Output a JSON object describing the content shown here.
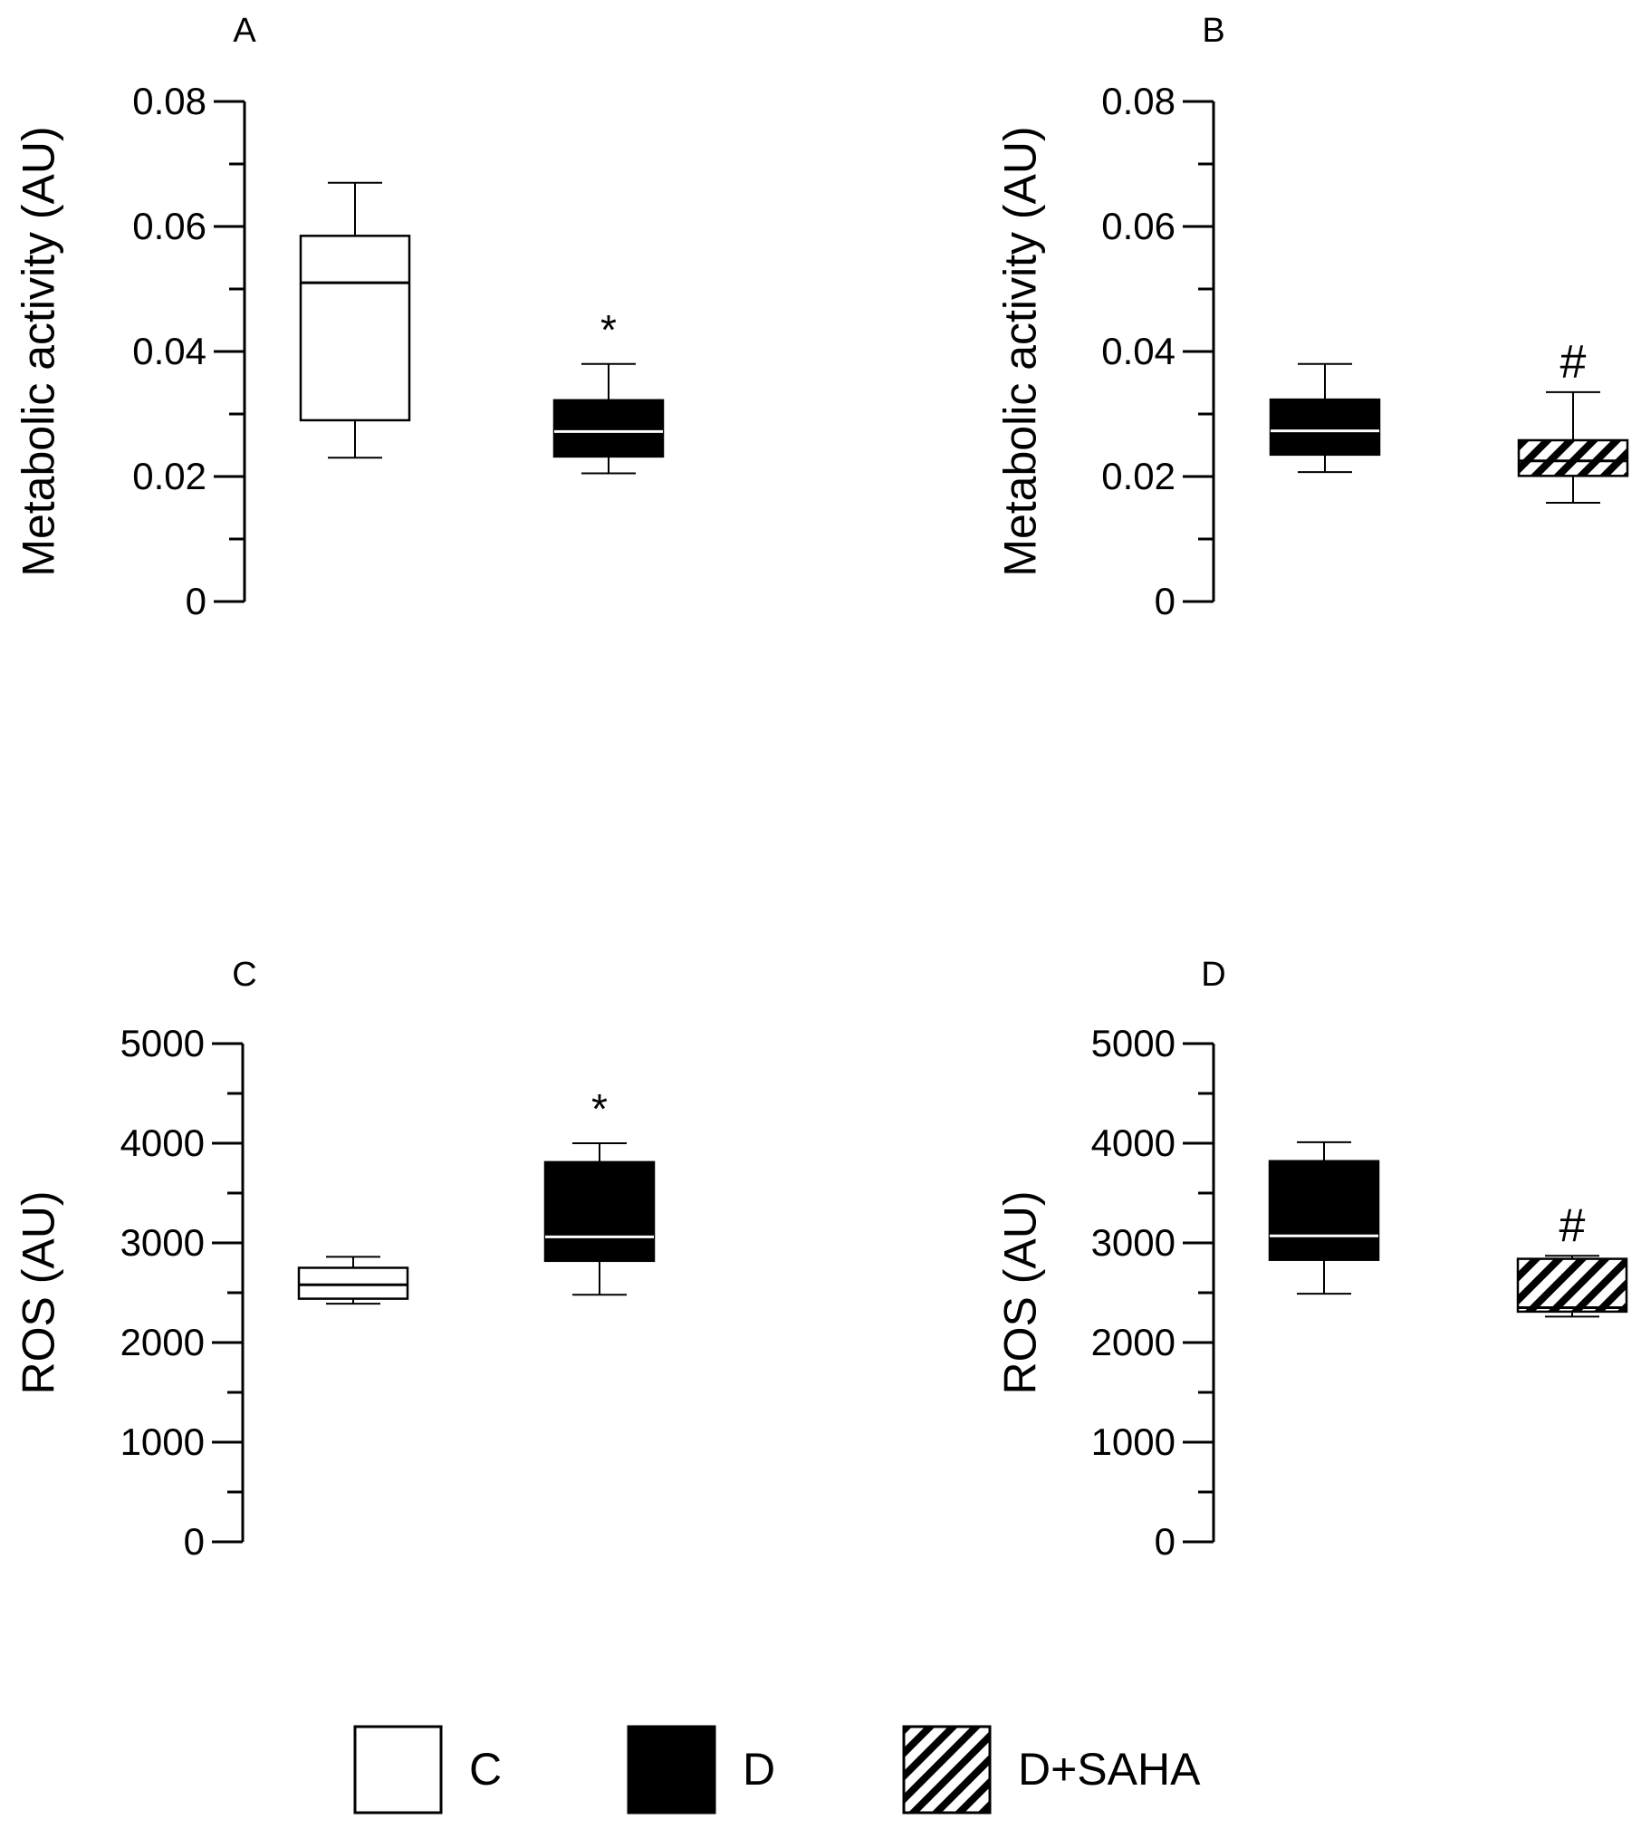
{
  "chart_data": [
    {
      "panel": "A",
      "type": "box",
      "ylabel": "Metabolic  activity (AU)",
      "ylim": [
        0,
        0.08
      ],
      "yticks": [
        "0",
        "0.02",
        "0.04",
        "0.06",
        "0.08"
      ],
      "boxes": [
        {
          "group": "C",
          "min": 0.023,
          "q1": 0.029,
          "median": 0.051,
          "q3": 0.0585,
          "max": 0.067,
          "mark": ""
        },
        {
          "group": "D",
          "min": 0.0205,
          "q1": 0.0232,
          "median": 0.0272,
          "q3": 0.0322,
          "max": 0.038,
          "mark": "*"
        }
      ]
    },
    {
      "panel": "B",
      "type": "box",
      "ylabel": "Metabolic  activity (AU)",
      "ylim": [
        0,
        0.08
      ],
      "yticks": [
        "0",
        "0.02",
        "0.04",
        "0.06",
        "0.08"
      ],
      "boxes": [
        {
          "group": "D",
          "min": 0.0207,
          "q1": 0.0235,
          "median": 0.0273,
          "q3": 0.0323,
          "max": 0.038,
          "mark": ""
        },
        {
          "group": "D+SAHA",
          "min": 0.0158,
          "q1": 0.0201,
          "median": 0.0225,
          "q3": 0.0258,
          "max": 0.0335,
          "mark": "#"
        }
      ]
    },
    {
      "panel": "C",
      "type": "box",
      "ylabel": "ROS (AU)",
      "ylim": [
        0,
        5000
      ],
      "yticks": [
        "0",
        "1000",
        "2000",
        "3000",
        "4000",
        "5000"
      ],
      "boxes": [
        {
          "group": "C",
          "min": 2390,
          "q1": 2440,
          "median": 2580,
          "q3": 2750,
          "max": 2860,
          "mark": ""
        },
        {
          "group": "D",
          "min": 2480,
          "q1": 2820,
          "median": 3060,
          "q3": 3810,
          "max": 4000,
          "mark": "*"
        }
      ]
    },
    {
      "panel": "D",
      "type": "box",
      "ylabel": "ROS (AU)",
      "ylim": [
        0,
        5000
      ],
      "yticks": [
        "0",
        "1000",
        "2000",
        "3000",
        "4000",
        "5000"
      ],
      "boxes": [
        {
          "group": "D",
          "min": 2490,
          "q1": 2830,
          "median": 3070,
          "q3": 3820,
          "max": 4010,
          "mark": ""
        },
        {
          "group": "D+SAHA",
          "min": 2260,
          "q1": 2310,
          "median": 2350,
          "q3": 2840,
          "max": 2870,
          "mark": "#"
        }
      ]
    }
  ],
  "legend": [
    {
      "label": "C",
      "fill": "white"
    },
    {
      "label": "D",
      "fill": "black"
    },
    {
      "label": "D+SAHA",
      "fill": "hatched"
    }
  ],
  "colors": {
    "axis": "#000000",
    "c_fill": "#ffffff",
    "d_fill": "#000000",
    "median_on_dark": "#ffffff"
  }
}
